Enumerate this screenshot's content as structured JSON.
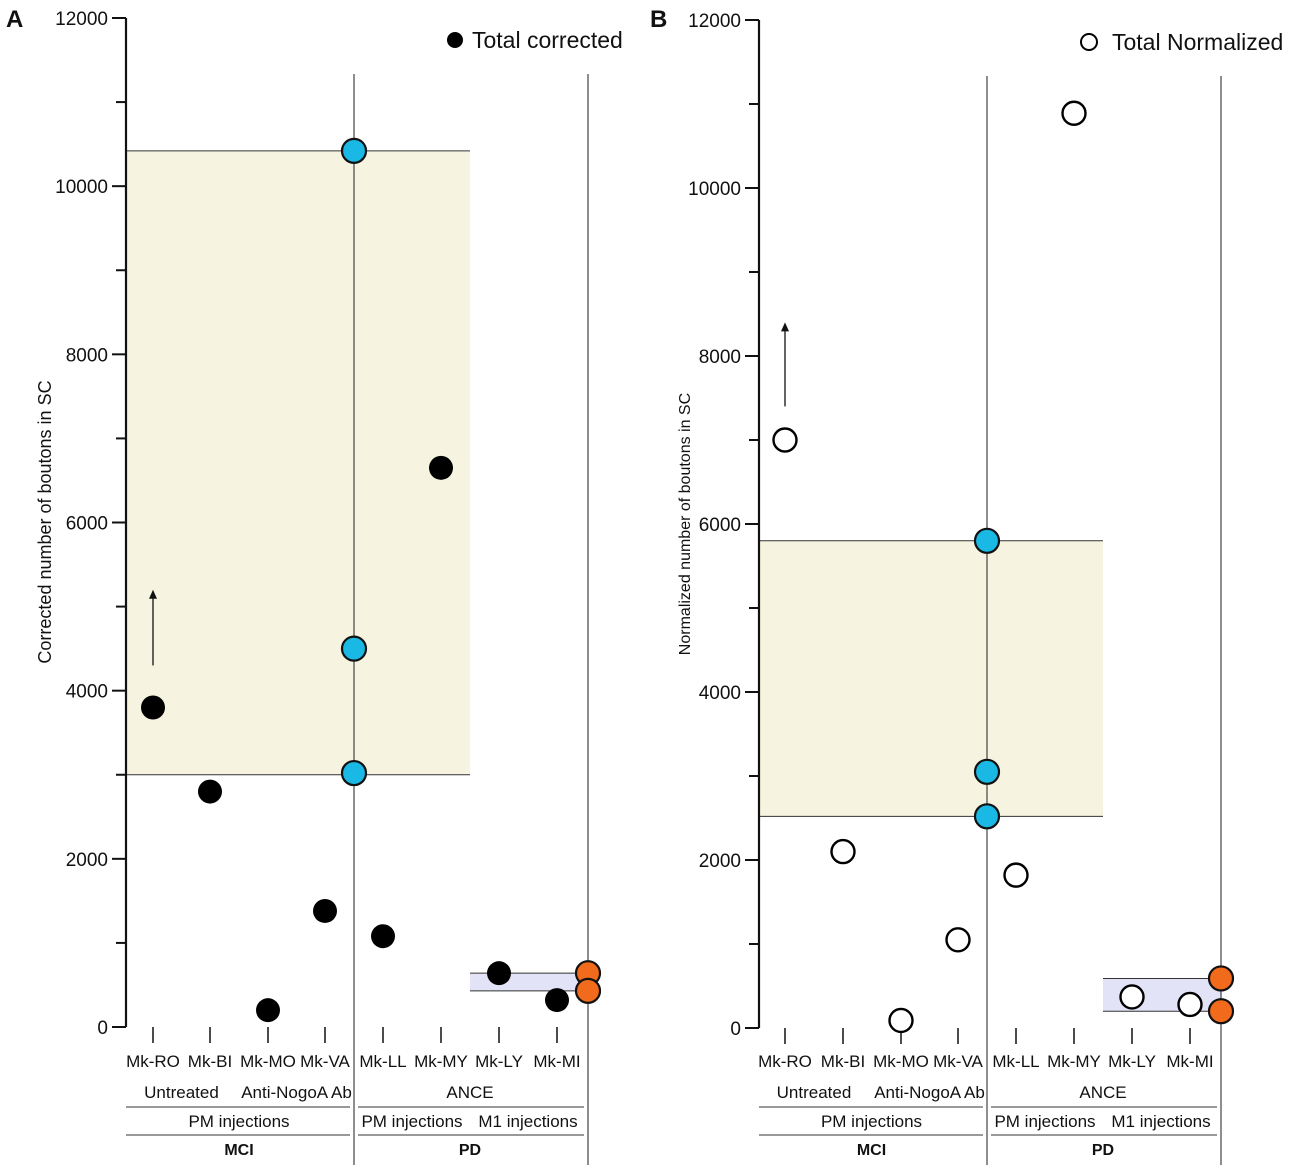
{
  "chart_data": [
    {
      "panel": "A",
      "type": "scatter",
      "legend": {
        "marker": "filled-black-circle",
        "label": "Total corrected",
        "position": "top-right"
      },
      "ylabel": "Corrected number of boutons in SC",
      "ylim": [
        0,
        12000
      ],
      "yticks": [
        0,
        2000,
        4000,
        6000,
        8000,
        10000,
        12000
      ],
      "categories": [
        "Mk-RO",
        "Mk-BI",
        "Mk-MO",
        "Mk-VA",
        "Mk-LL",
        "Mk-MY",
        "Mk-LY",
        "Mk-MI"
      ],
      "points": [
        {
          "category": "Mk-RO",
          "value": 3800,
          "style": "black"
        },
        {
          "category": "Mk-BI",
          "value": 2800,
          "style": "black"
        },
        {
          "category": "Mk-MO",
          "value": 200,
          "style": "black"
        },
        {
          "category": "Mk-VA",
          "value": 1380,
          "style": "black"
        },
        {
          "category": "Mk-LL",
          "value": 1080,
          "style": "black"
        },
        {
          "category": "Mk-MY",
          "value": 6650,
          "style": "black"
        },
        {
          "category": "Mk-LY",
          "value": 640,
          "style": "black"
        },
        {
          "category": "Mk-MI",
          "value": 320,
          "style": "black"
        }
      ],
      "reference_points": [
        {
          "at_divider": 1,
          "value": 10420,
          "color": "#1ab8e4"
        },
        {
          "at_divider": 1,
          "value": 4500,
          "color": "#1ab8e4"
        },
        {
          "at_divider": 1,
          "value": 3020,
          "color": "#1ab8e4"
        },
        {
          "at_divider": 2,
          "value": 640,
          "color": "#f26a1b"
        },
        {
          "at_divider": 2,
          "value": 430,
          "color": "#f26a1b"
        }
      ],
      "ranges": [
        {
          "from": 3000,
          "to": 10420,
          "x_from_category": "axis",
          "x_to_category": "Mk-MY-LY-mid",
          "color": "#f6f4e0"
        },
        {
          "from": 430,
          "to": 640,
          "x_from_category": "Mk-MY-LY-mid",
          "x_to_category": "divider-2",
          "color": "#e3e3f7"
        }
      ],
      "arrow": {
        "category": "Mk-RO",
        "from": 4300,
        "to": 5200
      }
    },
    {
      "panel": "B",
      "type": "scatter",
      "legend": {
        "marker": "open-circle",
        "label": "Total Normalized",
        "position": "top-right"
      },
      "ylabel": "Normalized number of boutons in SC",
      "ylim": [
        0,
        12000
      ],
      "yticks": [
        0,
        2000,
        4000,
        6000,
        8000,
        10000,
        12000
      ],
      "categories": [
        "Mk-RO",
        "Mk-BI",
        "Mk-MO",
        "Mk-VA",
        "Mk-LL",
        "Mk-MY",
        "Mk-LY",
        "Mk-MI"
      ],
      "points": [
        {
          "category": "Mk-RO",
          "value": 7000,
          "style": "open"
        },
        {
          "category": "Mk-BI",
          "value": 2100,
          "style": "open"
        },
        {
          "category": "Mk-MO",
          "value": 90,
          "style": "open"
        },
        {
          "category": "Mk-VA",
          "value": 1050,
          "style": "open"
        },
        {
          "category": "Mk-LL",
          "value": 1820,
          "style": "open"
        },
        {
          "category": "Mk-MY",
          "value": 10890,
          "style": "open"
        },
        {
          "category": "Mk-LY",
          "value": 370,
          "style": "open"
        },
        {
          "category": "Mk-MI",
          "value": 280,
          "style": "open"
        }
      ],
      "reference_points": [
        {
          "at_divider": 1,
          "value": 5800,
          "color": "#1ab8e4"
        },
        {
          "at_divider": 1,
          "value": 3050,
          "color": "#1ab8e4"
        },
        {
          "at_divider": 1,
          "value": 2520,
          "color": "#1ab8e4"
        },
        {
          "at_divider": 2,
          "value": 590,
          "color": "#f26a1b"
        },
        {
          "at_divider": 2,
          "value": 200,
          "color": "#f26a1b"
        }
      ],
      "ranges": [
        {
          "from": 2520,
          "to": 5800,
          "x_from_category": "axis",
          "x_to_category": "Mk-MY-LY-mid",
          "color": "#f6f4e0"
        },
        {
          "from": 200,
          "to": 590,
          "x_from_category": "Mk-MY-LY-mid",
          "x_to_category": "divider-2",
          "color": "#e3e3f7"
        }
      ],
      "arrow": {
        "category": "Mk-RO",
        "from": 7400,
        "to": 8400
      }
    }
  ],
  "groups": {
    "row1": [
      {
        "label": "Untreated",
        "span": [
          "Mk-RO",
          "Mk-BI"
        ]
      },
      {
        "label": "Anti-NogoA Ab",
        "span": [
          "Mk-MO",
          "Mk-VA"
        ]
      },
      {
        "label": "ANCE",
        "span": [
          "Mk-LL",
          "Mk-MI"
        ]
      }
    ],
    "row2": [
      {
        "label": "PM injections",
        "span": [
          "Mk-RO",
          "Mk-VA"
        ]
      },
      {
        "label": "PM injections",
        "span": [
          "Mk-LL",
          "Mk-MY"
        ]
      },
      {
        "label": "M1 injections",
        "span": [
          "Mk-LY",
          "Mk-MI"
        ]
      }
    ],
    "row3": [
      {
        "label": "MCI",
        "span": [
          "Mk-RO",
          "Mk-VA"
        ]
      },
      {
        "label": "PD",
        "span": [
          "Mk-LL",
          "Mk-MI"
        ]
      }
    ]
  }
}
